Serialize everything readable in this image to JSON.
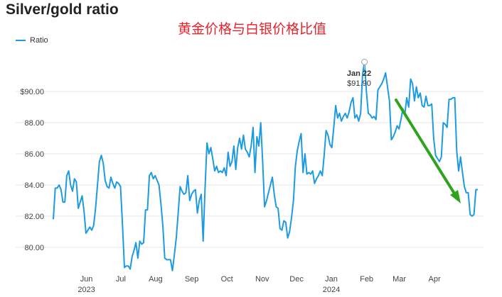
{
  "title": "Silver/gold ratio",
  "annotation": "黄金价格与白银价格比值",
  "legend": {
    "label": "Ratio"
  },
  "colors": {
    "series": "#1e9be0",
    "arrow": "#2ea41e",
    "grid": "#e6e6e6"
  },
  "tooltip": {
    "date": "Jan 22",
    "value": "$91.90"
  },
  "chart_data": {
    "type": "line",
    "title": "Silver/gold ratio",
    "ylim": [
      78.4,
      92.6
    ],
    "yticks": [
      "$90.00",
      "88.00",
      "86.00",
      "84.00",
      "82.00",
      "80.00"
    ],
    "ytick_values": [
      90,
      88,
      86,
      84,
      82,
      80
    ],
    "xtick_labels": [
      {
        "label": "Jun",
        "year": "2023",
        "pos": 0.078
      },
      {
        "label": "Jul",
        "year": "",
        "pos": 0.159
      },
      {
        "label": "Aug",
        "year": "",
        "pos": 0.241
      },
      {
        "label": "Sep",
        "year": "",
        "pos": 0.326
      },
      {
        "label": "Oct",
        "year": "",
        "pos": 0.409
      },
      {
        "label": "Nov",
        "year": "",
        "pos": 0.492
      },
      {
        "label": "Dec",
        "year": "",
        "pos": 0.573
      },
      {
        "label": "Jan",
        "year": "2024",
        "pos": 0.655
      },
      {
        "label": "Feb",
        "year": "",
        "pos": 0.738
      },
      {
        "label": "Mar",
        "year": "",
        "pos": 0.815
      },
      {
        "label": "Apr",
        "year": "",
        "pos": 0.898
      }
    ],
    "grid": true,
    "legend_position": "top-left",
    "series": [
      {
        "name": "Ratio",
        "values": [
          81.8,
          83.8,
          83.8,
          84.0,
          83.7,
          82.9,
          82.9,
          84.6,
          84.9,
          84.0,
          83.6,
          84.4,
          84.2,
          82.5,
          82.9,
          83.3,
          82.3,
          80.9,
          81.1,
          81.3,
          81.1,
          81.4,
          82.5,
          84.0,
          85.5,
          85.9,
          85.4,
          84.3,
          83.9,
          83.8,
          84.5,
          84.1,
          83.8,
          84.2,
          84.1,
          83.9,
          81.5,
          78.7,
          78.8,
          78.8,
          78.6,
          79.4,
          79.8,
          80.3,
          79.3,
          80.4,
          80.2,
          80.3,
          82.4,
          82.4,
          84.6,
          84.8,
          84.4,
          84.6,
          84.3,
          84.0,
          82.8,
          81.4,
          79.3,
          79.2,
          79.2,
          79.2,
          78.5,
          79.5,
          80.6,
          82.2,
          83.9,
          83.6,
          83.4,
          83.5,
          84.6,
          83.0,
          83.4,
          83.6,
          83.7,
          82.2,
          83.0,
          83.4,
          80.4,
          83.8,
          86.7,
          86.0,
          86.4,
          85.7,
          84.9,
          85.2,
          84.8,
          84.9,
          84.8,
          85.1,
          84.6,
          86.1,
          85.2,
          85.5,
          86.5,
          85.0,
          86.4,
          87.0,
          86.3,
          87.2,
          86.3,
          86.1,
          85.8,
          86.5,
          87.7,
          84.8,
          87.1,
          86.5,
          88.0,
          85.5,
          82.6,
          83.0,
          83.5,
          84.0,
          84.5,
          83.4,
          82.6,
          82.5,
          81.2,
          81.1,
          81.7,
          81.6,
          80.6,
          81.0,
          81.9,
          83.0,
          85.2,
          86.2,
          86.8,
          87.3,
          84.8,
          86.0,
          84.7,
          84.8,
          84.7,
          84.9,
          84.1,
          84.4,
          84.6,
          84.9,
          84.6,
          85.9,
          87.5,
          87.2,
          86.6,
          86.4,
          87.7,
          89.1,
          88.3,
          88.6,
          88.1,
          88.4,
          88.6,
          88.3,
          88.7,
          89.3,
          89.6,
          88.3,
          88.5,
          88.1,
          88.6,
          91.1,
          91.9,
          90.0,
          88.6,
          88.5,
          88.3,
          88.4,
          88.2,
          90.1,
          90.3,
          90.5,
          90.8,
          91.2,
          90.3,
          89.4,
          86.9,
          87.1,
          87.4,
          87.8,
          87.6,
          88.2,
          88.9,
          88.5,
          89.6,
          89.0,
          90.8,
          90.5,
          89.4,
          90.3,
          89.6,
          89.9,
          89.1,
          89.0,
          89.7,
          89.1,
          89.1,
          89.2,
          87.0,
          85.9,
          85.7,
          85.5,
          85.8,
          88.0,
          87.9,
          87.7,
          89.5,
          89.5,
          89.6,
          89.6,
          86.2,
          84.9,
          85.8,
          84.8,
          83.9,
          83.5,
          83.5,
          82.1,
          82.0,
          82.1,
          83.7,
          83.7
        ]
      }
    ]
  }
}
